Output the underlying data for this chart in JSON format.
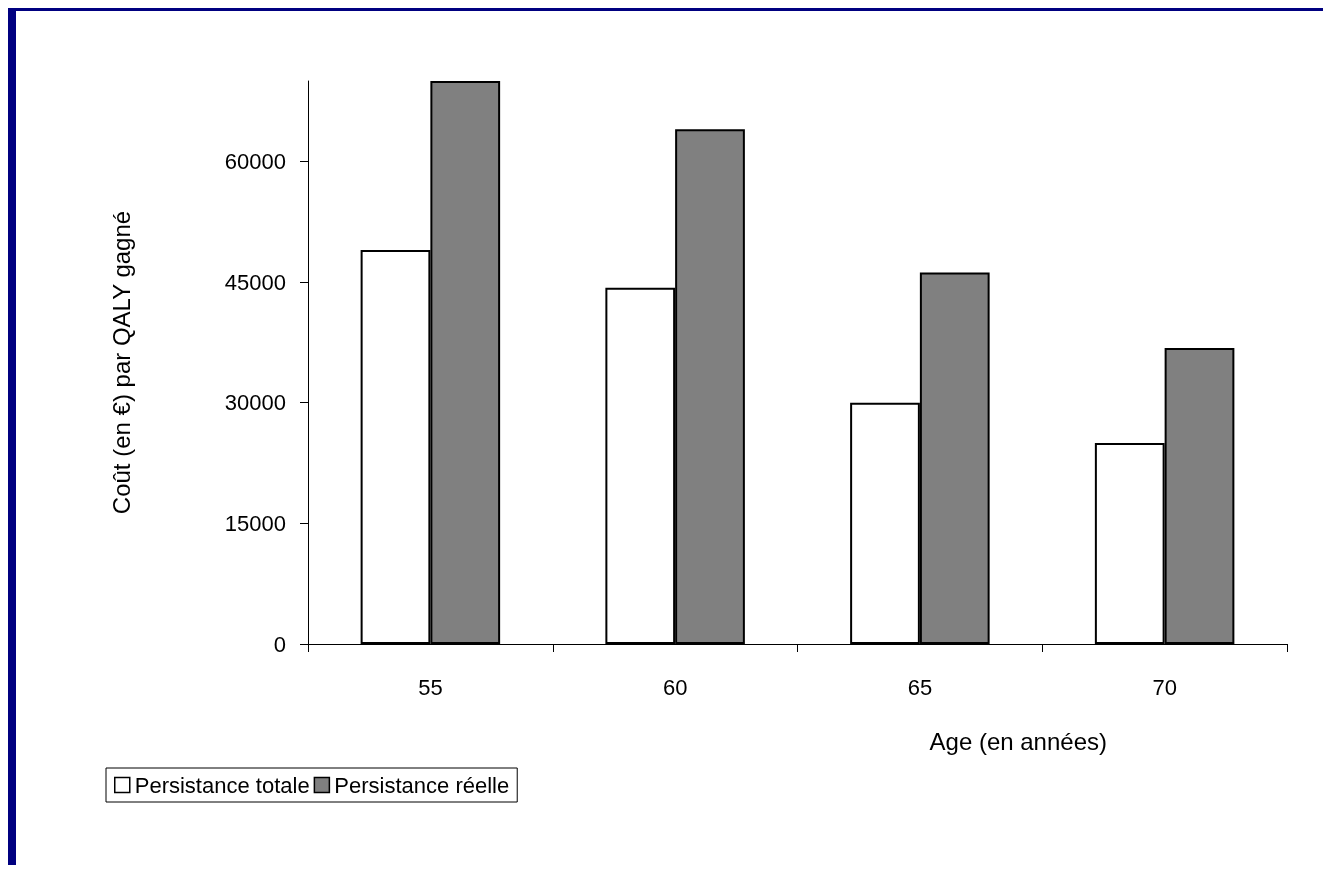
{
  "chart_data": {
    "type": "bar",
    "xlabel": "Age (en années)",
    "ylabel": "Coût (en €) par QALY gagné",
    "categories": [
      "55",
      "60",
      "65",
      "70"
    ],
    "series": [
      {
        "name": "Persistance totale",
        "color": "#ffffff",
        "values": [
          49000,
          44300,
          30000,
          25000
        ]
      },
      {
        "name": "Persistance réelle",
        "color": "#808080",
        "values": [
          70000,
          64000,
          46200,
          36800
        ]
      }
    ],
    "ylim": [
      0,
      70000
    ],
    "yticks": [
      0,
      15000,
      30000,
      45000,
      60000
    ],
    "grid": false,
    "legend": "bottom left"
  }
}
